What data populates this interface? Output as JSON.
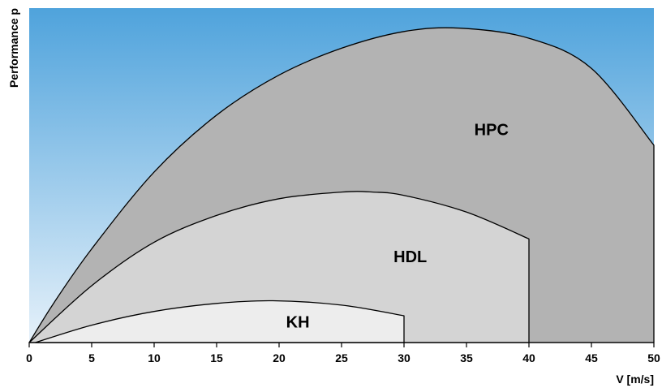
{
  "chart_data": {
    "type": "area",
    "title": "",
    "xlabel": "V [m/s]",
    "ylabel": "Performance p",
    "xlim": [
      0,
      50
    ],
    "ylim": [
      0,
      1
    ],
    "x_ticks": [
      0,
      5,
      10,
      15,
      20,
      25,
      30,
      35,
      40,
      45,
      50
    ],
    "grid": false,
    "legend": "none",
    "background": {
      "top_color": "#4fa3dc",
      "bottom_color": "#e6f1fa"
    },
    "series": [
      {
        "name": "HPC",
        "color": "#b3b3b3",
        "x": [
          0,
          2,
          5,
          10,
          15,
          20,
          25,
          30,
          34.5,
          40,
          45,
          50
        ],
        "y": [
          0,
          0.12,
          0.28,
          0.51,
          0.68,
          0.8,
          0.88,
          0.93,
          0.94,
          0.91,
          0.82,
          0.59
        ]
      },
      {
        "name": "HDL",
        "color": "#d4d4d4",
        "x": [
          0,
          5,
          10,
          15,
          20,
          25,
          27.5,
          30,
          35,
          40,
          40
        ],
        "y": [
          0,
          0.17,
          0.3,
          0.38,
          0.43,
          0.45,
          0.45,
          0.44,
          0.39,
          0.31,
          0
        ]
      },
      {
        "name": "KH",
        "color": "#ededed",
        "x": [
          0.5,
          5,
          10,
          15,
          19.5,
          25,
          30,
          30
        ],
        "y": [
          0,
          0.052,
          0.093,
          0.117,
          0.125,
          0.112,
          0.08,
          0
        ]
      }
    ]
  }
}
